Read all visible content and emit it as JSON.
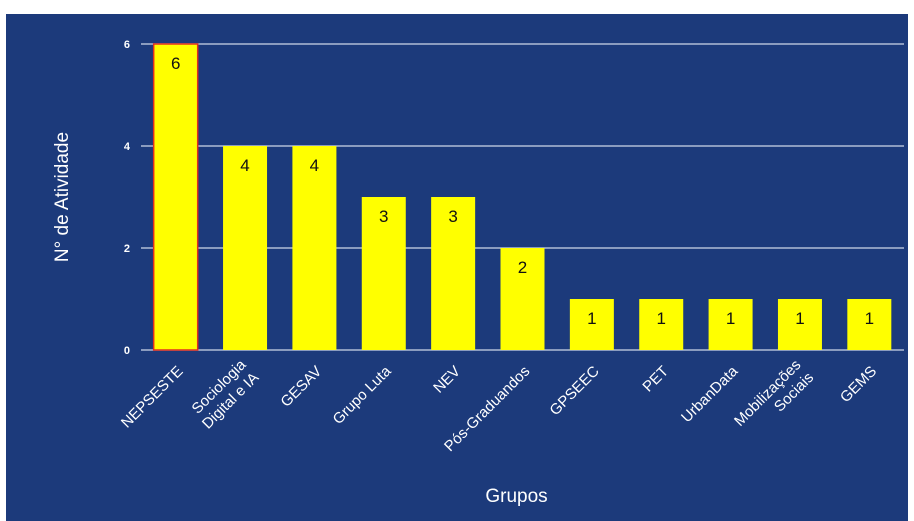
{
  "chart_data": {
    "type": "bar",
    "title": "",
    "xlabel": "Grupos",
    "ylabel": "N° de Atividade",
    "categories": [
      [
        "NEPSESTE"
      ],
      [
        "Sociologia",
        "Digital e IA"
      ],
      [
        "GESAV"
      ],
      [
        "Grupo Luta"
      ],
      [
        "NEV"
      ],
      [
        "Pós-Graduandos"
      ],
      [
        "GPSEEC"
      ],
      [
        "PET"
      ],
      [
        "UrbanData"
      ],
      [
        "Mobilizações",
        "Sociais"
      ],
      [
        "GEMS"
      ]
    ],
    "values": [
      6,
      4,
      4,
      3,
      3,
      2,
      1,
      1,
      1,
      1,
      1
    ],
    "ylim": [
      0,
      6
    ],
    "yticks": [
      0,
      2,
      4,
      6
    ],
    "grid": true,
    "colors": {
      "background": "#1c3a7b",
      "bar": "#ffff00",
      "bar_highlight_edge": "#e0301e",
      "grid": "#b0bcd6",
      "text": "#ffffff",
      "data_label": "#111111"
    }
  }
}
